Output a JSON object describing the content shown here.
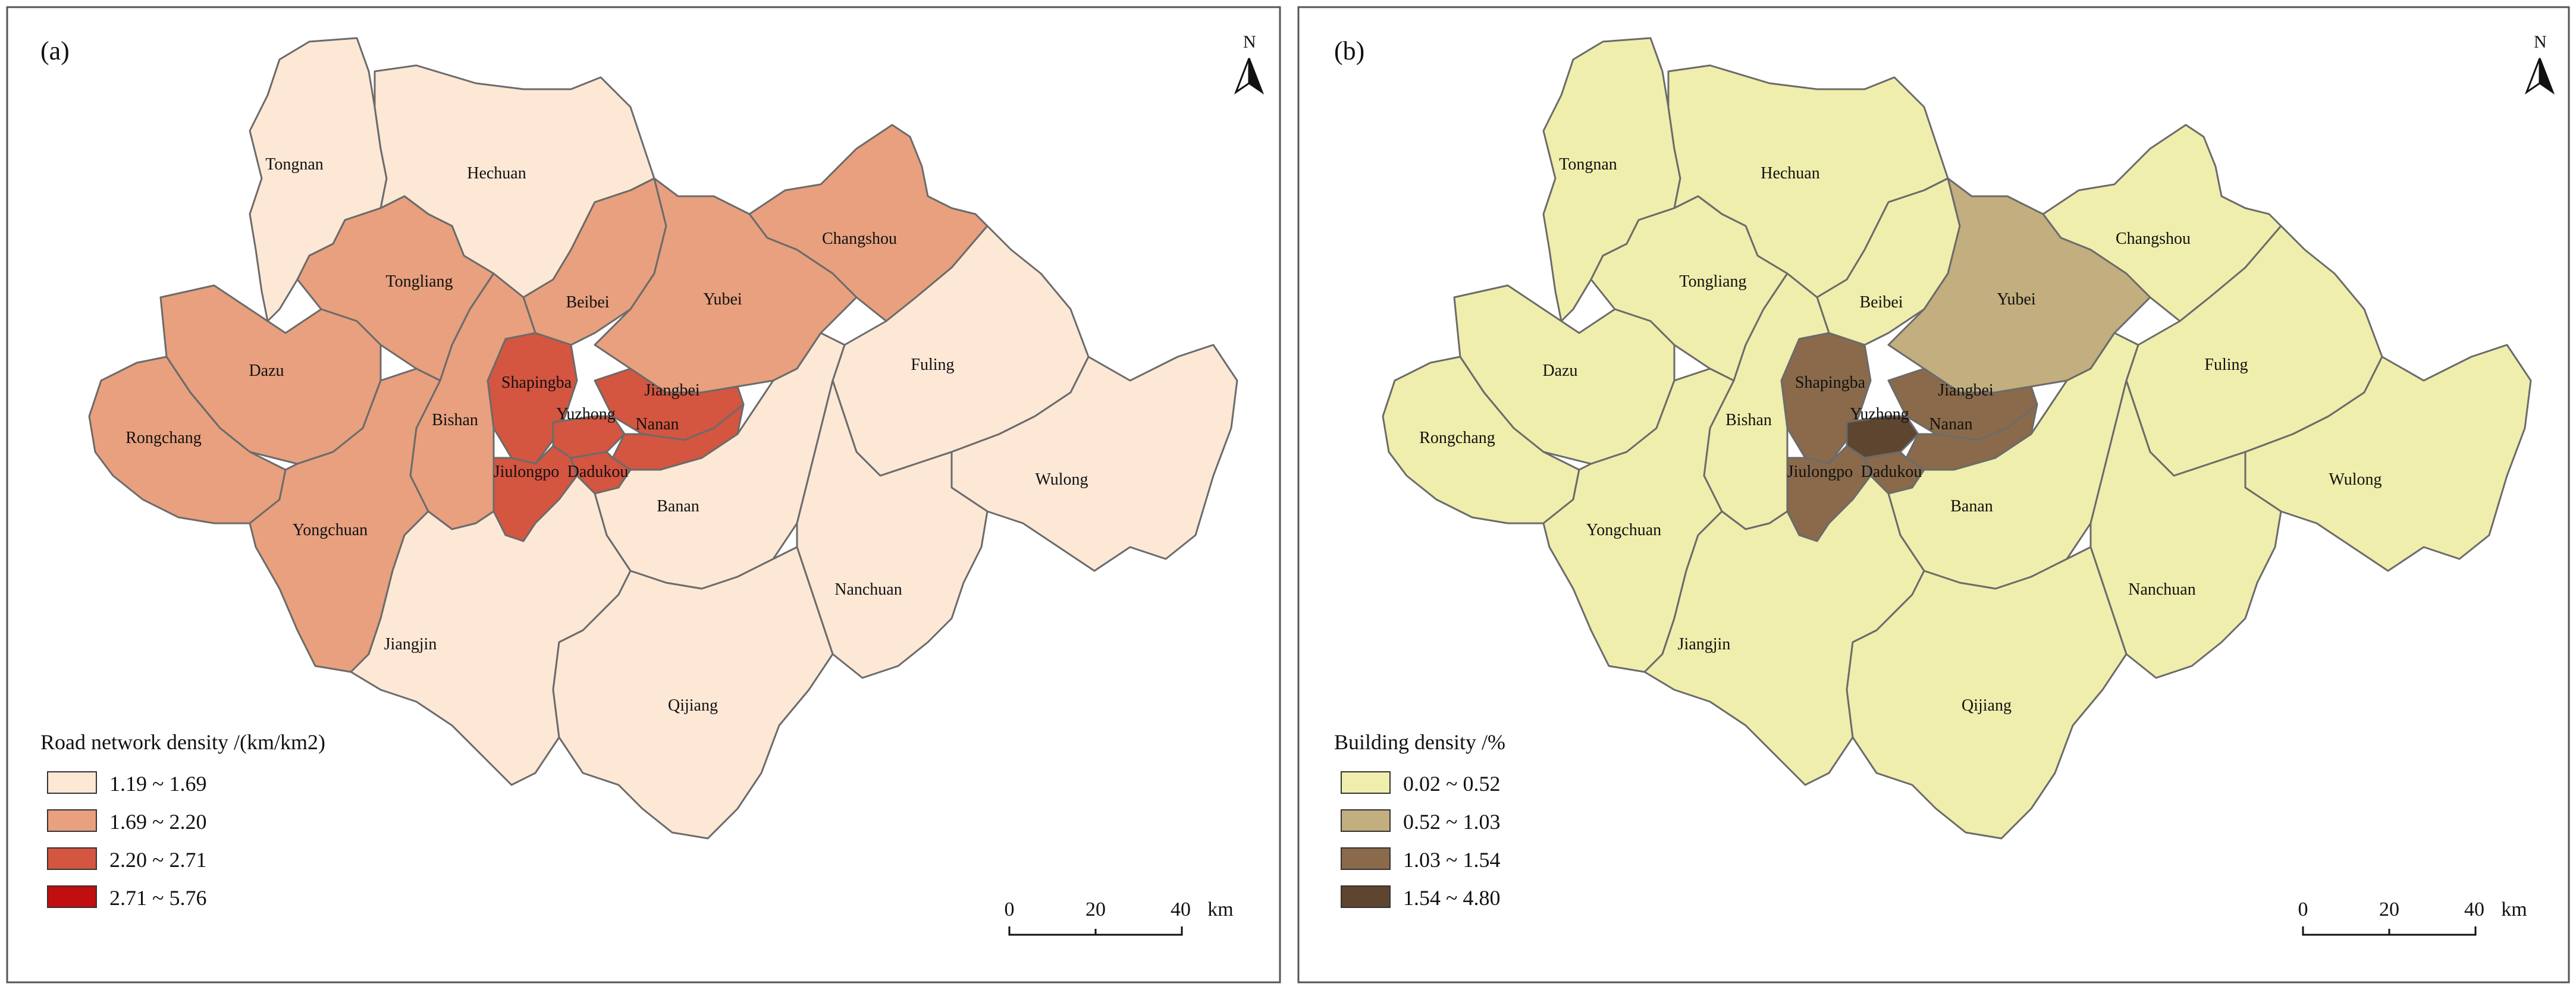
{
  "panels": [
    {
      "id": "a",
      "label": "(a)",
      "north_label": "N",
      "legend": {
        "title": "Road network density /(km/km2)",
        "classes": [
          {
            "label": "1.19 ~ 1.69",
            "color": "#fde8d6"
          },
          {
            "label": "1.69 ~ 2.20",
            "color": "#e8a07e"
          },
          {
            "label": "2.20 ~ 2.71",
            "color": "#d45540"
          },
          {
            "label": "2.71 ~ 5.76",
            "color": "#c10e0e"
          }
        ]
      },
      "scale_bar": {
        "ticks": [
          "0",
          "20",
          "40"
        ],
        "unit": "km"
      },
      "district_class": {
        "Tongnan": 0,
        "Hechuan": 0,
        "Tongliang": 1,
        "Changshou": 1,
        "Beibei": 1,
        "Yubei": 1,
        "Dazu": 1,
        "Rongchang": 1,
        "Yongchuan": 1,
        "Bishan": 1,
        "Shapingba": 2,
        "Jiangbei": 2,
        "Yuzhong": 2,
        "Nanan": 2,
        "Jiulongpo": 2,
        "Dadukou": 2,
        "Banan": 0,
        "Fuling": 0,
        "Wulong": 0,
        "Nanchuan": 0,
        "Jiangjin": 0,
        "Qijiang": 0
      }
    },
    {
      "id": "b",
      "label": "(b)",
      "north_label": "N",
      "legend": {
        "title": "Building density /%",
        "classes": [
          {
            "label": "0.02 ~ 0.52",
            "color": "#f0eeac"
          },
          {
            "label": "0.52 ~ 1.03",
            "color": "#c2ae7e"
          },
          {
            "label": "1.03 ~ 1.54",
            "color": "#8a6a4a"
          },
          {
            "label": "1.54 ~ 4.80",
            "color": "#5e4530"
          }
        ]
      },
      "scale_bar": {
        "ticks": [
          "0",
          "20",
          "40"
        ],
        "unit": "km"
      },
      "district_class": {
        "Tongnan": 0,
        "Hechuan": 0,
        "Tongliang": 0,
        "Changshou": 0,
        "Beibei": 0,
        "Yubei": 1,
        "Dazu": 0,
        "Rongchang": 0,
        "Yongchuan": 0,
        "Bishan": 0,
        "Shapingba": 2,
        "Jiangbei": 2,
        "Yuzhong": 3,
        "Nanan": 2,
        "Jiulongpo": 2,
        "Dadukou": 2,
        "Banan": 0,
        "Fuling": 0,
        "Wulong": 0,
        "Nanchuan": 0,
        "Jiangjin": 0,
        "Qijiang": 0
      }
    }
  ],
  "districts": [
    {
      "name": "Tongnan",
      "label": "Tongnan"
    },
    {
      "name": "Hechuan",
      "label": "Hechuan"
    },
    {
      "name": "Tongliang",
      "label": "Tongliang"
    },
    {
      "name": "Changshou",
      "label": "Changshou"
    },
    {
      "name": "Beibei",
      "label": "Beibei"
    },
    {
      "name": "Yubei",
      "label": "Yubei"
    },
    {
      "name": "Dazu",
      "label": "Dazu"
    },
    {
      "name": "Fuling",
      "label": "Fuling"
    },
    {
      "name": "Shapingba",
      "label": "Shapingba"
    },
    {
      "name": "Jiangbei",
      "label": "Jiangbei"
    },
    {
      "name": "Rongchang",
      "label": "Rongchang"
    },
    {
      "name": "Bishan",
      "label": "Bishan"
    },
    {
      "name": "Yuzhong",
      "label": "Yuzhong"
    },
    {
      "name": "Nanan",
      "label": "Nanan"
    },
    {
      "name": "Wulong",
      "label": "Wulong"
    },
    {
      "name": "Jiulongpo",
      "label": "Jiulongpo"
    },
    {
      "name": "Dadukou",
      "label": "Dadukou"
    },
    {
      "name": "Yongchuan",
      "label": "Yongchuan"
    },
    {
      "name": "Banan",
      "label": "Banan"
    },
    {
      "name": "Nanchuan",
      "label": "Nanchuan"
    },
    {
      "name": "Jiangjin",
      "label": "Jiangjin"
    },
    {
      "name": "Qijiang",
      "label": "Qijiang"
    }
  ]
}
